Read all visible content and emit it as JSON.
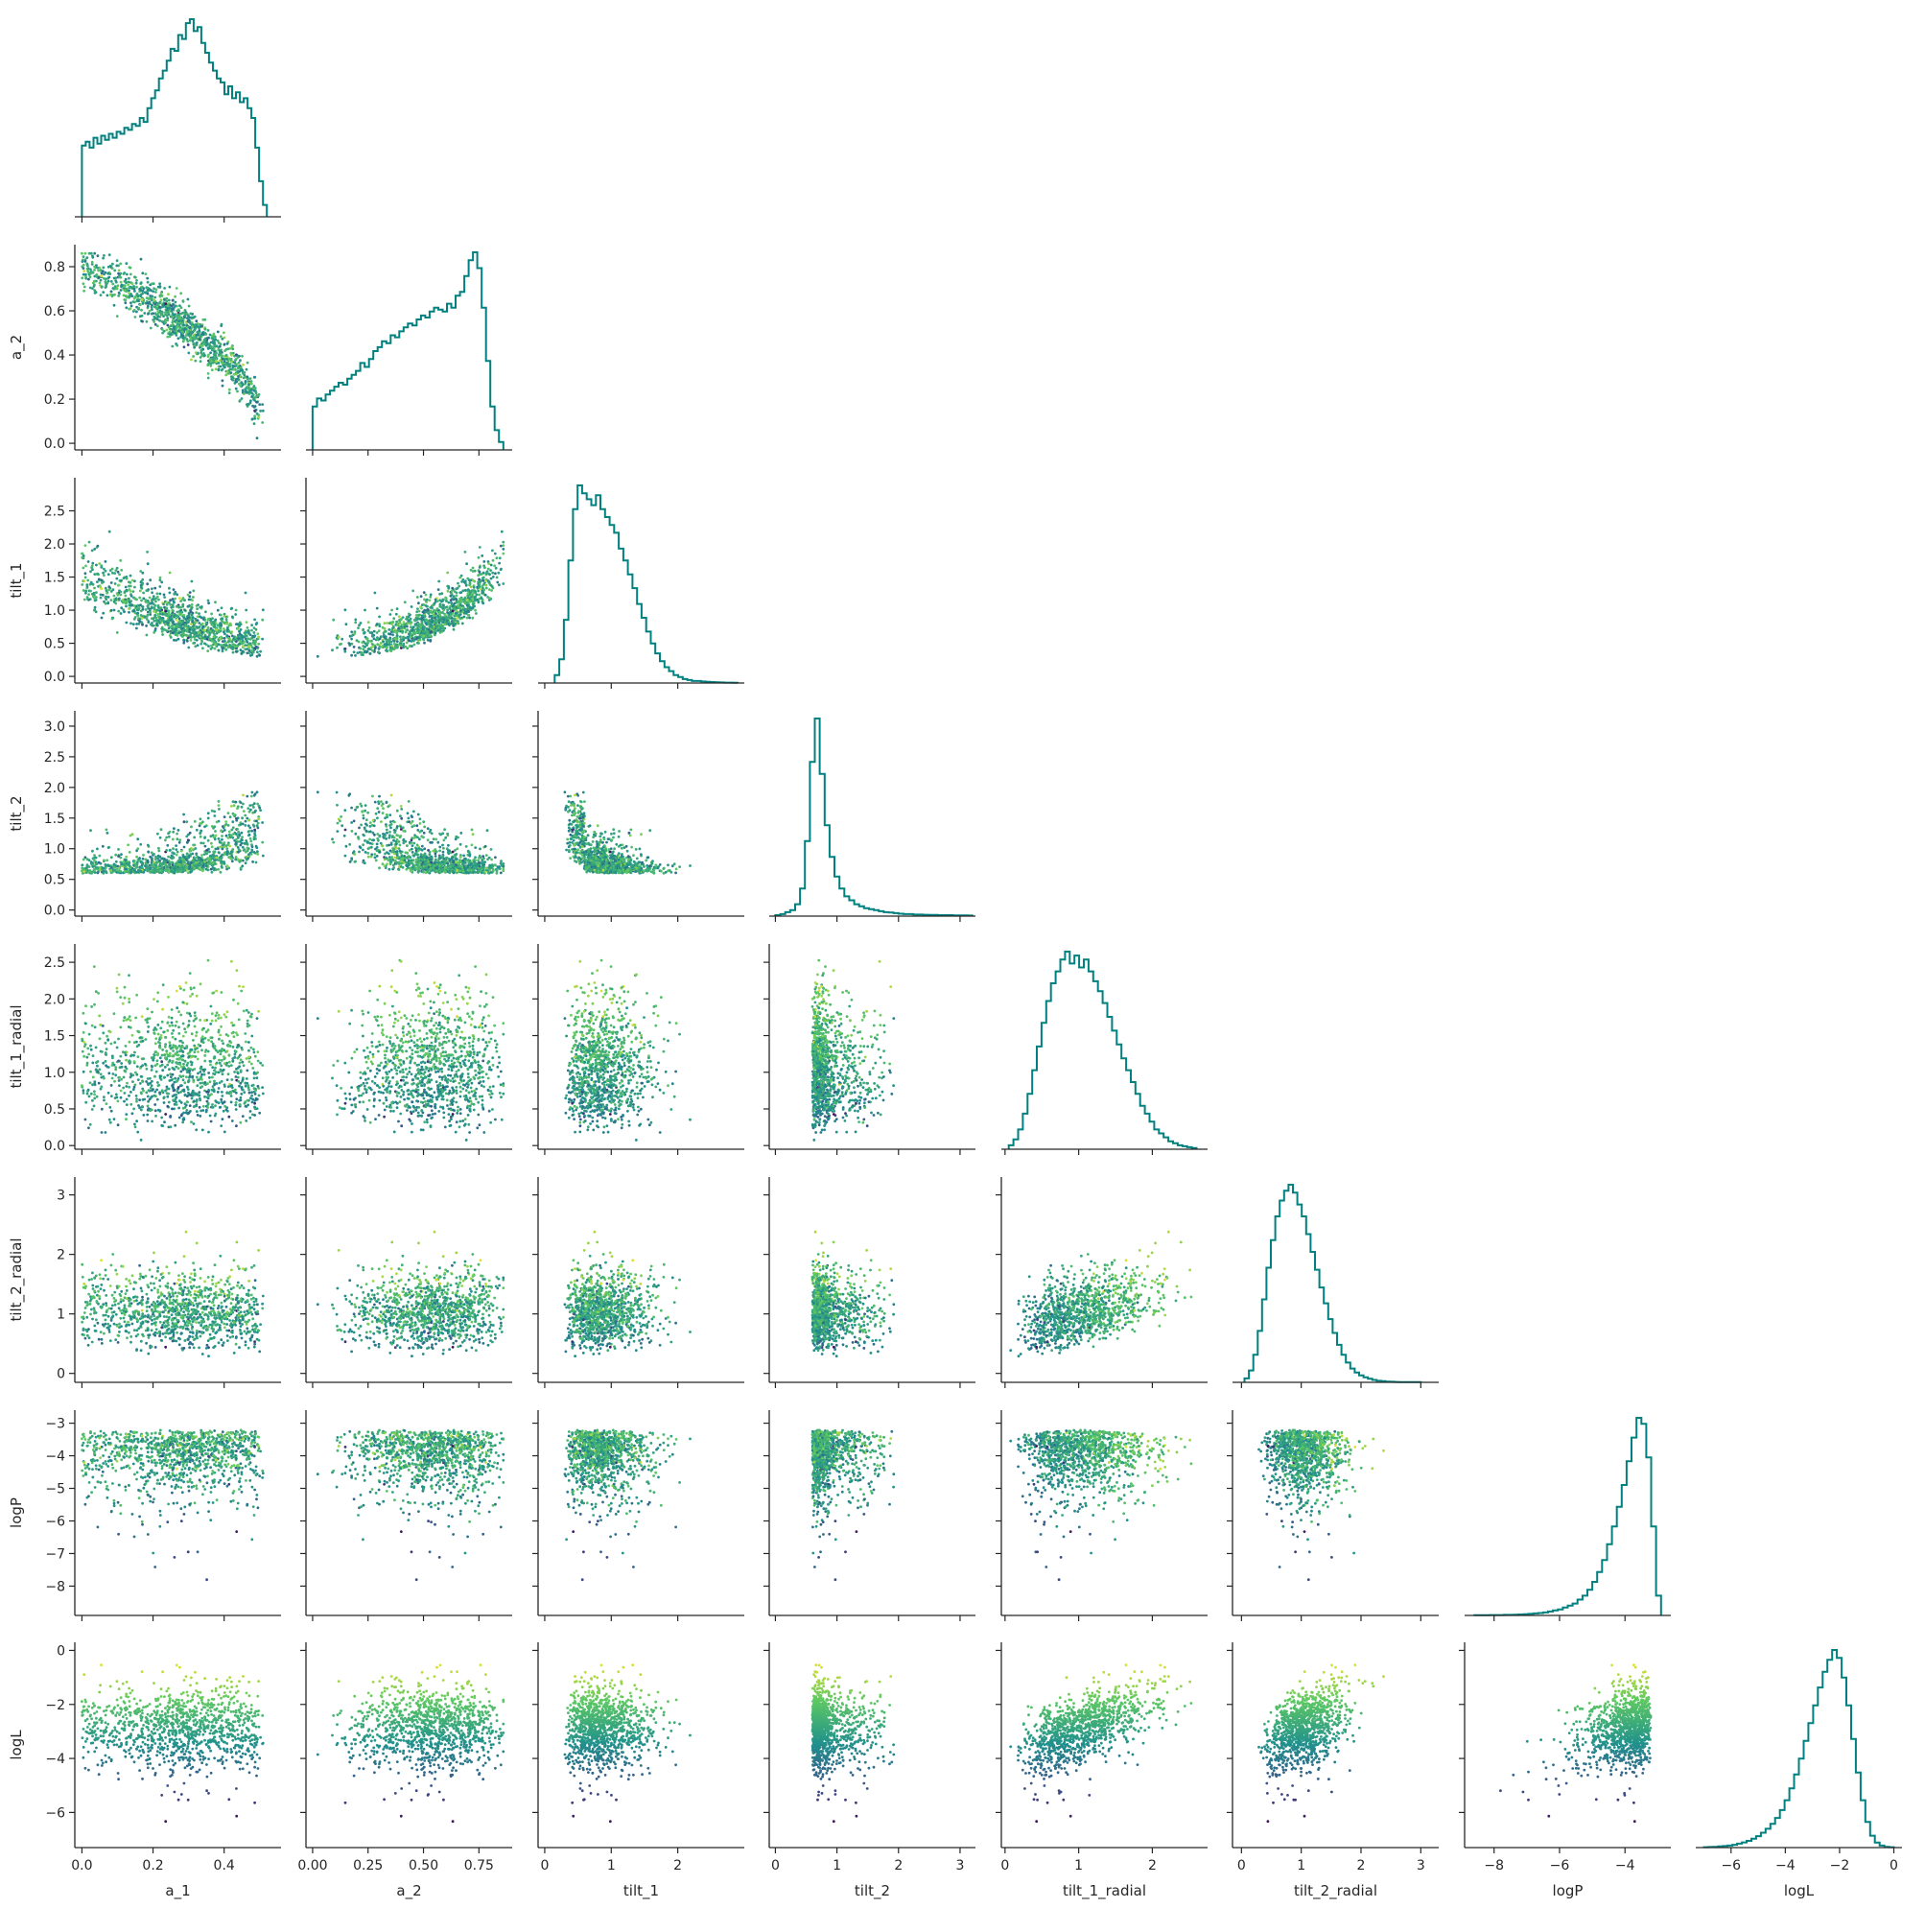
{
  "chart_data": {
    "type": "scatter",
    "subtype": "corner-pairplot",
    "variables": [
      "a_1",
      "a_2",
      "tilt_1",
      "tilt_2",
      "tilt_1_radial",
      "tilt_2_radial",
      "logP",
      "logL"
    ],
    "axis_labels": [
      "a_1",
      "a_2",
      "tilt_1",
      "tilt_2",
      "tilt_1_radial",
      "tilt_2_radial",
      "logP",
      "logL"
    ],
    "ranges": {
      "a_1": [
        -0.02,
        0.56
      ],
      "a_2": [
        -0.03,
        0.9
      ],
      "tilt_1": [
        -0.1,
        3.0
      ],
      "tilt_2": [
        -0.1,
        3.25
      ],
      "tilt_1_radial": [
        -0.05,
        2.75
      ],
      "tilt_2_radial": [
        -0.15,
        3.3
      ],
      "logP": [
        -8.9,
        -2.6
      ],
      "logL": [
        -7.3,
        0.3
      ]
    },
    "ticks": {
      "a_1": [
        0.0,
        0.2,
        0.4
      ],
      "a_2": [
        0.0,
        0.2,
        0.4,
        0.6,
        0.8
      ],
      "tilt_1": [
        0.0,
        0.5,
        1.0,
        1.5,
        2.0,
        2.5
      ],
      "tilt_2": [
        0.0,
        0.5,
        1.0,
        1.5,
        2.0,
        2.5,
        3.0
      ],
      "tilt_1_radial": [
        0.0,
        0.5,
        1.0,
        1.5,
        2.0,
        2.5
      ],
      "tilt_2_radial": [
        0,
        1,
        2,
        3
      ],
      "logP": [
        -8,
        -7,
        -6,
        -5,
        -4,
        -3
      ],
      "logL": [
        -6,
        -4,
        -2,
        0
      ]
    },
    "x_ticks": {
      "a_1": [
        0.0,
        0.2,
        0.4
      ],
      "a_2": [
        0.0,
        0.25,
        0.5,
        0.75
      ],
      "tilt_1": [
        0,
        1,
        2
      ],
      "tilt_2": [
        0,
        1,
        2,
        3
      ],
      "tilt_1_radial": [
        0,
        1,
        2
      ],
      "tilt_2_radial": [
        0,
        1,
        2,
        3
      ],
      "logP": [
        -8,
        -6,
        -4
      ],
      "logL": [
        -6,
        -4,
        -2,
        0
      ]
    },
    "x_tick_labels": {
      "a_1": [
        "0.0",
        "0.2",
        "0.4"
      ],
      "a_2": [
        "0.00",
        "0.25",
        "0.50",
        "0.75"
      ],
      "tilt_1": [
        "0",
        "1",
        "2"
      ],
      "tilt_2": [
        "0",
        "1",
        "2",
        "3"
      ],
      "tilt_1_radial": [
        "0",
        "1",
        "2"
      ],
      "tilt_2_radial": [
        "0",
        "1",
        "2",
        "3"
      ],
      "logP": [
        "−8",
        "−6",
        "−4"
      ],
      "logL": [
        "−6",
        "−4",
        "−2",
        "0"
      ]
    },
    "y_tick_labels": {
      "a_2": [
        "0.0",
        "0.2",
        "0.4",
        "0.6",
        "0.8"
      ],
      "tilt_1": [
        "0.0",
        "0.5",
        "1.0",
        "1.5",
        "2.0",
        "2.5"
      ],
      "tilt_2": [
        "0.0",
        "0.5",
        "1.0",
        "1.5",
        "2.0",
        "2.5",
        "3.0"
      ],
      "tilt_1_radial": [
        "0.0",
        "0.5",
        "1.0",
        "1.5",
        "2.0",
        "2.5"
      ],
      "tilt_2_radial": [
        "0",
        "1",
        "2",
        "3"
      ],
      "logP": [
        "−8",
        "−7",
        "−6",
        "−5",
        "−4",
        "−3"
      ],
      "logL": [
        "−6",
        "−4",
        "−2",
        "0"
      ]
    },
    "histograms": {
      "a_1": {
        "bin_edges_range": [
          0.0,
          0.52
        ],
        "counts": [
          0.36,
          0.38,
          0.35,
          0.4,
          0.37,
          0.41,
          0.39,
          0.42,
          0.4,
          0.43,
          0.42,
          0.45,
          0.44,
          0.47,
          0.46,
          0.5,
          0.48,
          0.55,
          0.6,
          0.64,
          0.7,
          0.74,
          0.79,
          0.85,
          0.84,
          0.92,
          0.9,
          0.98,
          1.0,
          0.94,
          0.96,
          0.88,
          0.83,
          0.78,
          0.74,
          0.7,
          0.68,
          0.62,
          0.66,
          0.6,
          0.63,
          0.58,
          0.6,
          0.55,
          0.5,
          0.35,
          0.18,
          0.06
        ]
      },
      "a_2": {
        "bin_edges_range": [
          0.0,
          0.86
        ],
        "counts": [
          0.22,
          0.26,
          0.25,
          0.28,
          0.3,
          0.32,
          0.34,
          0.33,
          0.36,
          0.38,
          0.4,
          0.44,
          0.42,
          0.46,
          0.5,
          0.52,
          0.55,
          0.54,
          0.58,
          0.57,
          0.6,
          0.62,
          0.64,
          0.63,
          0.66,
          0.68,
          0.67,
          0.7,
          0.72,
          0.71,
          0.7,
          0.74,
          0.72,
          0.78,
          0.8,
          0.88,
          0.96,
          1.0,
          0.92,
          0.72,
          0.45,
          0.22,
          0.1,
          0.04
        ]
      },
      "tilt_1": {
        "bin_edges_range": [
          0.15,
          2.9
        ],
        "counts": [
          0.04,
          0.12,
          0.32,
          0.62,
          0.88,
          1.0,
          0.96,
          0.93,
          0.9,
          0.95,
          0.88,
          0.84,
          0.8,
          0.76,
          0.68,
          0.62,
          0.55,
          0.48,
          0.4,
          0.33,
          0.26,
          0.2,
          0.15,
          0.11,
          0.08,
          0.06,
          0.04,
          0.03,
          0.02,
          0.015,
          0.01,
          0.01,
          0.008,
          0.006,
          0.005,
          0.004,
          0.003,
          0.002,
          0.002,
          0.001
        ]
      },
      "tilt_2": {
        "bin_edges_range": [
          0.0,
          3.2
        ],
        "counts": [
          0.005,
          0.01,
          0.02,
          0.03,
          0.06,
          0.14,
          0.38,
          0.78,
          1.0,
          0.72,
          0.46,
          0.3,
          0.2,
          0.14,
          0.1,
          0.08,
          0.06,
          0.05,
          0.04,
          0.035,
          0.03,
          0.025,
          0.02,
          0.018,
          0.015,
          0.012,
          0.01,
          0.01,
          0.008,
          0.008,
          0.007,
          0.006,
          0.006,
          0.005,
          0.005,
          0.005,
          0.004,
          0.004,
          0.004,
          0.003
        ]
      },
      "tilt_1_radial": {
        "bin_edges_range": [
          0.05,
          2.6
        ],
        "counts": [
          0.02,
          0.05,
          0.1,
          0.18,
          0.28,
          0.4,
          0.52,
          0.64,
          0.75,
          0.84,
          0.9,
          0.96,
          1.0,
          0.94,
          0.98,
          0.92,
          0.96,
          0.9,
          0.85,
          0.8,
          0.74,
          0.67,
          0.6,
          0.53,
          0.46,
          0.4,
          0.34,
          0.28,
          0.22,
          0.18,
          0.14,
          0.1,
          0.08,
          0.06,
          0.04,
          0.03,
          0.02,
          0.015,
          0.01,
          0.006
        ]
      },
      "tilt_2_radial": {
        "bin_edges_range": [
          0.05,
          3.0
        ],
        "counts": [
          0.02,
          0.06,
          0.14,
          0.26,
          0.42,
          0.58,
          0.72,
          0.84,
          0.92,
          0.97,
          1.0,
          0.96,
          0.9,
          0.84,
          0.75,
          0.66,
          0.57,
          0.48,
          0.4,
          0.32,
          0.25,
          0.19,
          0.14,
          0.1,
          0.07,
          0.05,
          0.035,
          0.025,
          0.018,
          0.012,
          0.008,
          0.006,
          0.004,
          0.003,
          0.002,
          0.001,
          0.001,
          0.001,
          0.001,
          0.001
        ]
      },
      "logP": {
        "bin_edges_range": [
          -8.6,
          -2.9
        ],
        "counts": [
          0.001,
          0.001,
          0.001,
          0.002,
          0.002,
          0.002,
          0.003,
          0.003,
          0.004,
          0.005,
          0.006,
          0.008,
          0.01,
          0.012,
          0.015,
          0.02,
          0.025,
          0.03,
          0.04,
          0.05,
          0.06,
          0.08,
          0.1,
          0.13,
          0.17,
          0.22,
          0.28,
          0.36,
          0.45,
          0.55,
          0.66,
          0.78,
          0.9,
          1.0,
          0.97,
          0.8,
          0.45,
          0.1
        ]
      },
      "logL": {
        "bin_edges_range": [
          -7.0,
          0.0
        ],
        "counts": [
          0.002,
          0.003,
          0.004,
          0.006,
          0.008,
          0.01,
          0.014,
          0.02,
          0.026,
          0.034,
          0.045,
          0.058,
          0.075,
          0.095,
          0.12,
          0.15,
          0.19,
          0.24,
          0.3,
          0.37,
          0.45,
          0.54,
          0.63,
          0.72,
          0.81,
          0.89,
          0.95,
          1.0,
          0.96,
          0.86,
          0.72,
          0.55,
          0.38,
          0.24,
          0.13,
          0.06,
          0.025,
          0.01,
          0.004,
          0.002
        ]
      }
    },
    "points_per_panel": 1100,
    "color_by": "logL",
    "colormap": [
      "#440154",
      "#3b528b",
      "#21918c",
      "#5ec962",
      "#fde725"
    ],
    "hist_color": "#00807f",
    "grid": false,
    "legend": "none"
  }
}
